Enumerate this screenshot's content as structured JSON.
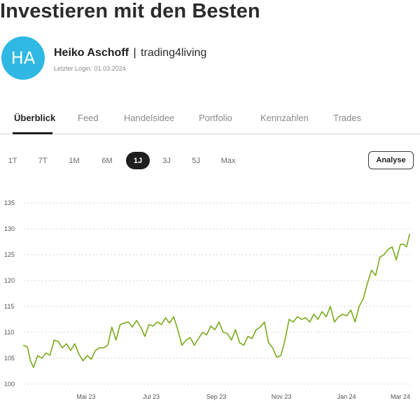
{
  "page": {
    "title": "Investieren mit den Besten"
  },
  "profile": {
    "initials": "HA",
    "name": "Heiko Aschoff",
    "separator": "|",
    "handle": "trading4living",
    "last_login_label": "Letzter Login:",
    "last_login_date": "01.03.2024"
  },
  "tabs": [
    {
      "label": "Überblick",
      "active": true
    },
    {
      "label": "Feed",
      "active": false
    },
    {
      "label": "Handelsidee",
      "active": false
    },
    {
      "label": "Portfolio",
      "active": false
    },
    {
      "label": "Kennzahlen",
      "active": false
    },
    {
      "label": "Trades",
      "active": false
    }
  ],
  "ranges": [
    {
      "label": "1T",
      "active": false
    },
    {
      "label": "7T",
      "active": false
    },
    {
      "label": "1M",
      "active": false
    },
    {
      "label": "6M",
      "active": false
    },
    {
      "label": "1J",
      "active": true
    },
    {
      "label": "3J",
      "active": false
    },
    {
      "label": "5J",
      "active": false
    },
    {
      "label": "Max",
      "active": false
    }
  ],
  "analyse_label": "Analyse",
  "chart_data": {
    "type": "line",
    "x_tick_labels": [
      "Mai 23",
      "Jul 23",
      "Sep 23",
      "Nov 23",
      "Jan 24",
      "Mar 24"
    ],
    "y_ticks": [
      100,
      105,
      110,
      115,
      120,
      125,
      130,
      135
    ],
    "ylim": [
      100,
      135
    ],
    "grid": true,
    "color": "#7aaa1c",
    "series": [
      {
        "x": [
          "2023-03-01",
          "2023-03-05",
          "2023-03-08",
          "2023-03-11",
          "2023-03-15",
          "2023-03-19",
          "2023-03-23",
          "2023-03-27",
          "2023-03-31",
          "2023-04-04",
          "2023-04-08",
          "2023-04-12",
          "2023-04-16",
          "2023-04-20",
          "2023-04-24",
          "2023-04-28",
          "2023-05-02",
          "2023-05-06",
          "2023-05-10",
          "2023-05-14",
          "2023-05-18",
          "2023-05-22",
          "2023-05-26",
          "2023-05-30",
          "2023-06-03",
          "2023-06-07",
          "2023-06-11",
          "2023-06-15",
          "2023-06-19",
          "2023-06-23",
          "2023-06-27",
          "2023-07-01",
          "2023-07-05",
          "2023-07-09",
          "2023-07-13",
          "2023-07-17",
          "2023-07-21",
          "2023-07-25",
          "2023-07-29",
          "2023-08-02",
          "2023-08-06",
          "2023-08-10",
          "2023-08-14",
          "2023-08-18",
          "2023-08-22",
          "2023-08-26",
          "2023-08-30",
          "2023-09-03",
          "2023-09-07",
          "2023-09-11",
          "2023-09-15",
          "2023-09-19",
          "2023-09-23",
          "2023-09-27",
          "2023-10-01",
          "2023-10-05",
          "2023-10-09",
          "2023-10-13",
          "2023-10-17",
          "2023-10-21",
          "2023-10-25",
          "2023-10-29",
          "2023-11-02",
          "2023-11-06",
          "2023-11-10",
          "2023-11-14",
          "2023-11-18",
          "2023-11-22",
          "2023-11-26",
          "2023-11-30",
          "2023-12-04",
          "2023-12-08",
          "2023-12-12",
          "2023-12-16",
          "2023-12-20",
          "2023-12-24",
          "2023-12-28",
          "2024-01-01",
          "2024-01-05",
          "2024-01-09",
          "2024-01-13",
          "2024-01-17",
          "2024-01-21",
          "2024-01-25",
          "2024-01-29",
          "2024-02-02",
          "2024-02-06",
          "2024-02-10",
          "2024-02-14",
          "2024-02-18",
          "2024-02-22",
          "2024-02-26",
          "2024-03-01",
          "2024-03-04",
          "2024-03-07",
          "2024-03-10"
        ],
        "y": [
          107.5,
          107.2,
          104.5,
          103.2,
          105.5,
          105,
          106,
          105.6,
          108.5,
          108.2,
          107,
          107.8,
          106.5,
          107.8,
          105.8,
          104.5,
          105.5,
          104.8,
          106.5,
          107,
          107,
          107.5,
          111,
          108.5,
          111.5,
          111.8,
          112,
          111,
          112.3,
          111,
          109.2,
          111.5,
          111.2,
          112,
          111.5,
          112.8,
          111.8,
          113,
          110.5,
          107.5,
          108.5,
          109,
          107.5,
          108.8,
          110,
          109.5,
          111.2,
          110.5,
          112,
          110,
          109.8,
          108.5,
          110.5,
          108,
          107.5,
          109.2,
          108.8,
          110.5,
          111,
          112,
          108,
          107,
          105.2,
          105.5,
          108.5,
          112.5,
          112,
          113,
          112.5,
          112.8,
          112,
          113.5,
          112.5,
          114,
          113,
          115,
          112,
          113,
          113.5,
          113.2,
          114.3,
          112,
          115,
          116.5,
          119.5,
          122,
          121,
          124.5,
          125,
          126,
          126.5,
          124,
          127,
          127,
          126.5,
          129
        ]
      }
    ]
  }
}
